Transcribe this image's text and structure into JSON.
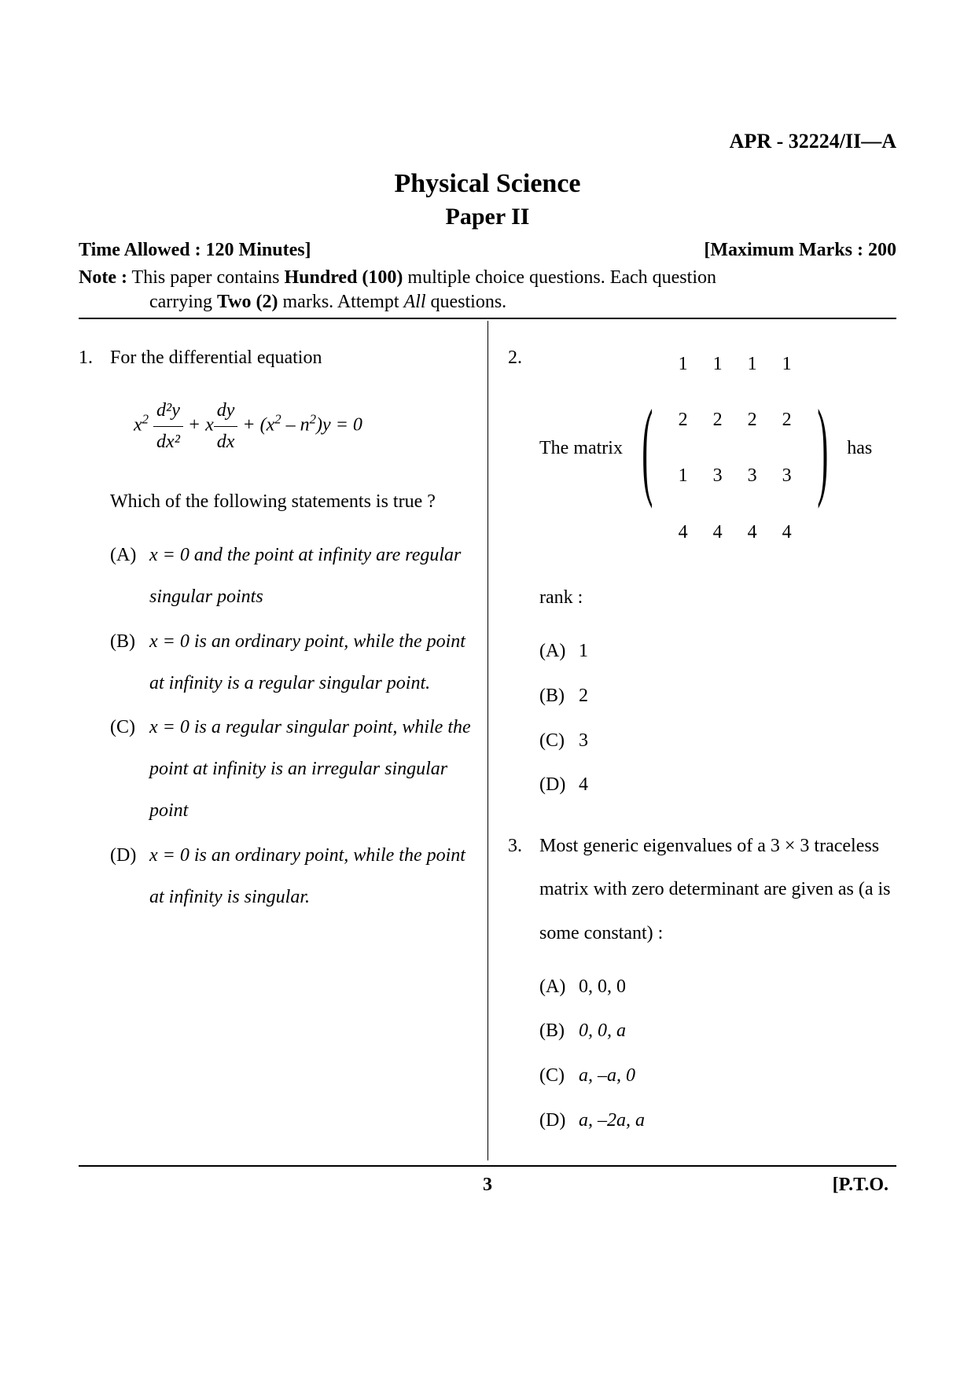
{
  "header": {
    "code": "APR - 32224/II—A",
    "title": "Physical Science",
    "subtitle": "Paper II",
    "time_label": "Time Allowed : 120 Minutes]",
    "marks_label": "[Maximum Marks : 200",
    "note_prefix": "Note :",
    "note_line1_a": " This paper contains ",
    "note_line1_b": "Hundred (100)",
    "note_line1_c": " multiple choice questions. Each question",
    "note_line2_a": "carrying ",
    "note_line2_b": "Two (2)",
    "note_line2_c": " marks. Attempt ",
    "note_line2_d": "All",
    "note_line2_e": " questions."
  },
  "q1": {
    "num": "1.",
    "text": "For the differential equation",
    "equation_prefix": "x",
    "equation_sup1": "2",
    "frac1_num": "d²y",
    "frac1_den": "dx²",
    "plus1": " + x",
    "frac2_num": "dy",
    "frac2_den": "dx",
    "plus2": " + (x",
    "sup2": "2",
    "minus": " – n",
    "sup3": "2",
    "end": ")y = 0",
    "text2": "Which of the following statements is true ?",
    "optA": "x = 0 and the point at infinity are regular singular points",
    "optB": "x = 0 is an ordinary point, while the point at infinity is a regular singular point.",
    "optC": "x = 0 is a regular singular point, while the point at infinity is an irregular singular point",
    "optD": "x = 0 is an ordinary point, while the point at infinity is singular."
  },
  "q2": {
    "num": "2.",
    "text_before": "The matrix ",
    "text_after": " has",
    "matrix": [
      [
        "1",
        "1",
        "1",
        "1"
      ],
      [
        "2",
        "2",
        "2",
        "2"
      ],
      [
        "1",
        "3",
        "3",
        "3"
      ],
      [
        "4",
        "4",
        "4",
        "4"
      ]
    ],
    "text2": "rank :",
    "optA": "1",
    "optB": "2",
    "optC": "3",
    "optD": "4"
  },
  "q3": {
    "num": "3.",
    "text": "Most generic eigenvalues of a 3 × 3 traceless matrix with zero determinant are given as (a is some constant) :",
    "optA": "0, 0, 0",
    "optB": "0, 0, a",
    "optC": "a, –a, 0",
    "optD": "a, –2a, a"
  },
  "labels": {
    "A": "(A)",
    "B": "(B)",
    "C": "(C)",
    "D": "(D)"
  },
  "footer": {
    "page": "3",
    "pto": "[P.T.O."
  }
}
